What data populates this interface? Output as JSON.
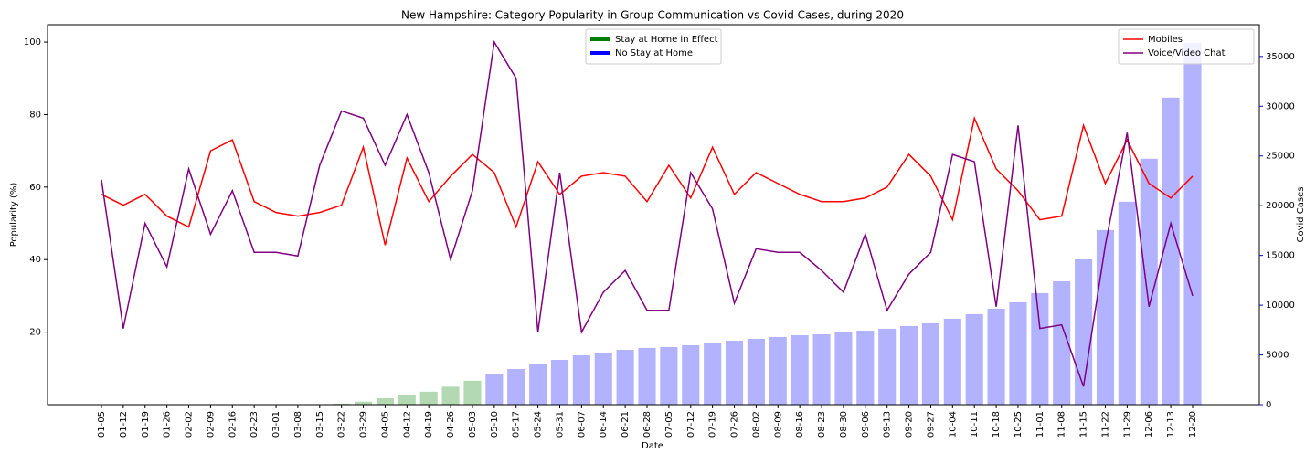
{
  "chart_data": {
    "type": "combo",
    "title": "New Hampshire: Category Popularity in Group Communication vs Covid Cases, during 2020",
    "x_label": "Date",
    "y_label": "Popularity (%)",
    "y2_label": "Covid Cases",
    "y2_color": "blue",
    "categories": [
      "01-05",
      "01-12",
      "01-19",
      "01-26",
      "02-02",
      "02-09",
      "02-16",
      "02-23",
      "03-01",
      "03-08",
      "03-15",
      "03-22",
      "03-29",
      "04-05",
      "04-12",
      "04-19",
      "04-26",
      "05-03",
      "05-10",
      "05-17",
      "05-24",
      "05-31",
      "06-07",
      "06-14",
      "06-21",
      "06-28",
      "07-05",
      "07-12",
      "07-19",
      "07-26",
      "08-02",
      "08-09",
      "08-16",
      "08-23",
      "08-30",
      "09-06",
      "09-13",
      "09-20",
      "09-27",
      "10-04",
      "10-11",
      "10-18",
      "10-25",
      "11-01",
      "11-08",
      "11-15",
      "11-22",
      "11-29",
      "12-06",
      "12-13",
      "12-20"
    ],
    "ylim": [
      0,
      104.8
    ],
    "yticks": [
      20,
      40,
      60,
      80,
      100
    ],
    "y2lim": [
      0,
      38200
    ],
    "y2ticks": [
      0,
      5000,
      10000,
      15000,
      20000,
      25000,
      30000,
      35000
    ],
    "series": [
      {
        "name": "Mobiles",
        "type": "line",
        "color": "red",
        "legend": "upper right",
        "values": [
          58,
          55,
          58,
          52,
          49,
          70,
          73,
          56,
          53,
          52,
          53,
          55,
          71,
          44,
          68,
          56,
          63,
          69,
          64,
          49,
          67,
          58,
          63,
          64,
          63,
          56,
          66,
          57,
          71,
          58,
          64,
          61,
          58,
          56,
          56,
          57,
          60,
          69,
          63,
          51,
          79,
          65,
          59,
          51,
          52,
          77,
          61,
          73,
          61,
          57,
          63
        ]
      },
      {
        "name": "Voice/Video Chat",
        "type": "line",
        "color": "purple",
        "legend": "upper right",
        "values": [
          62,
          21,
          50,
          38,
          65,
          47,
          59,
          42,
          42,
          41,
          66,
          81,
          79,
          66,
          80,
          64,
          40,
          59,
          100,
          90,
          20,
          64,
          20,
          31,
          37,
          26,
          26,
          64,
          54,
          28,
          43,
          42,
          42,
          37,
          31,
          47,
          26,
          36,
          42,
          69,
          67,
          27,
          77,
          21,
          22,
          5,
          44,
          75,
          27,
          50,
          30
        ]
      },
      {
        "name": "Stay at Home in Effect",
        "type": "bar",
        "axis": "y2",
        "color": "green",
        "legend": "upper center",
        "values": [
          null,
          null,
          null,
          null,
          null,
          null,
          null,
          null,
          null,
          null,
          null,
          100,
          300,
          640,
          1000,
          1300,
          1800,
          2400,
          null,
          null,
          null,
          null,
          null,
          null,
          null,
          null,
          null,
          null,
          null,
          null,
          null,
          null,
          null,
          null,
          null,
          null,
          null,
          null,
          null,
          null,
          null,
          null,
          null,
          null,
          null,
          null,
          null,
          null,
          null,
          null,
          null
        ]
      },
      {
        "name": "No Stay at Home",
        "type": "bar",
        "axis": "y2",
        "color": "blue",
        "legend": "upper center",
        "values": [
          0,
          0,
          0,
          0,
          0,
          0,
          0,
          0,
          0,
          0,
          0,
          null,
          null,
          null,
          null,
          null,
          null,
          null,
          3030,
          3580,
          4040,
          4500,
          4960,
          5240,
          5510,
          5700,
          5790,
          5970,
          6160,
          6430,
          6620,
          6800,
          6980,
          7070,
          7260,
          7440,
          7630,
          7900,
          8180,
          8640,
          9100,
          9650,
          10290,
          11210,
          12400,
          14610,
          17550,
          20400,
          24720,
          30870,
          36380
        ]
      }
    ]
  }
}
